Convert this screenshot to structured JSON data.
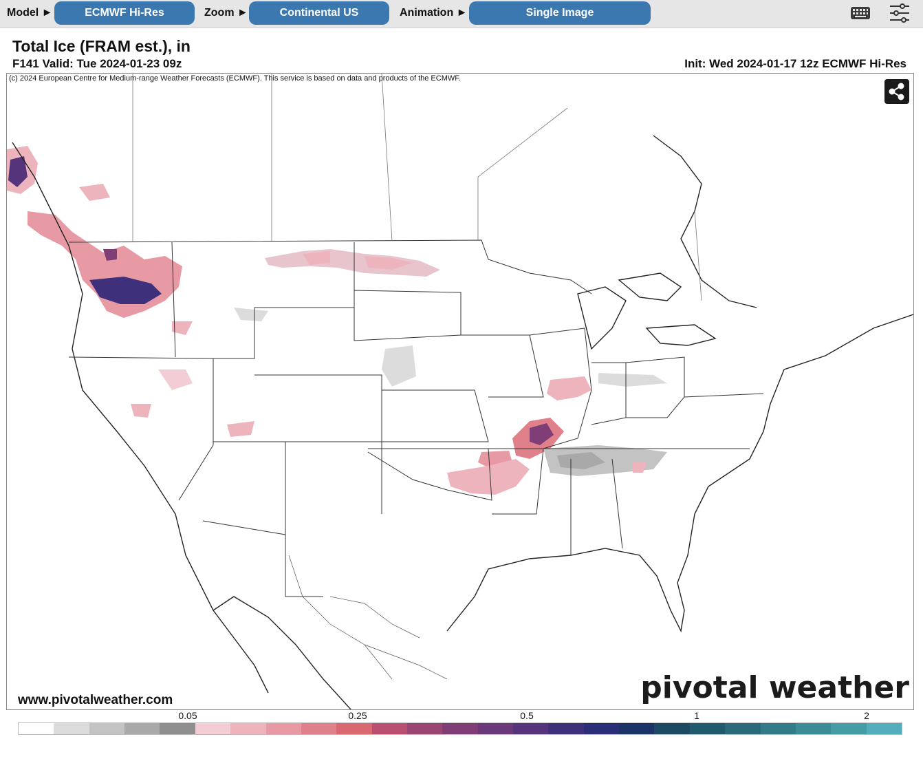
{
  "toolbar": {
    "model_label": "Model ►",
    "model_value": "ECMWF Hi-Res",
    "zoom_label": "Zoom ►",
    "zoom_value": "Continental US",
    "animation_label": "Animation ►",
    "animation_value": "Single Image",
    "keyboard_icon": "keyboard-icon",
    "settings_icon": "sliders-icon"
  },
  "header": {
    "title": "Total Ice (FRAM est.), in",
    "valid": "F141 Valid: Tue 2024-01-23 09z",
    "init": "Init: Wed 2024-01-17 12z ECMWF Hi-Res"
  },
  "map": {
    "copyright": "(c) 2024 European Centre for Medium-range Weather Forecasts (ECMWF). This service is based on data and products of the ECMWF.",
    "share_icon": "share-icon",
    "site": "www.pivotalweather.com",
    "brand": "pivotal weather"
  },
  "scale": {
    "labels": [
      "0.05",
      "0.25",
      "0.5",
      "1",
      "2"
    ],
    "colors": [
      "#ffffff",
      "#dcdcdc",
      "#c3c3c3",
      "#a9a9a9",
      "#8f8f8f",
      "#f2cdd3",
      "#edb4bd",
      "#e79aa3",
      "#e0808a",
      "#d96870",
      "#b84e70",
      "#9a4673",
      "#7f3f76",
      "#6a3979",
      "#55347c",
      "#3f307c",
      "#2a2e76",
      "#1c3367",
      "#1d4a63",
      "#225a6d",
      "#2a6a7b",
      "#337b88",
      "#3b8c96",
      "#449ca4",
      "#52aebb"
    ]
  },
  "colors": {
    "toolbar_bg": "#e6e6e6",
    "button_bg": "#3b78b0"
  }
}
